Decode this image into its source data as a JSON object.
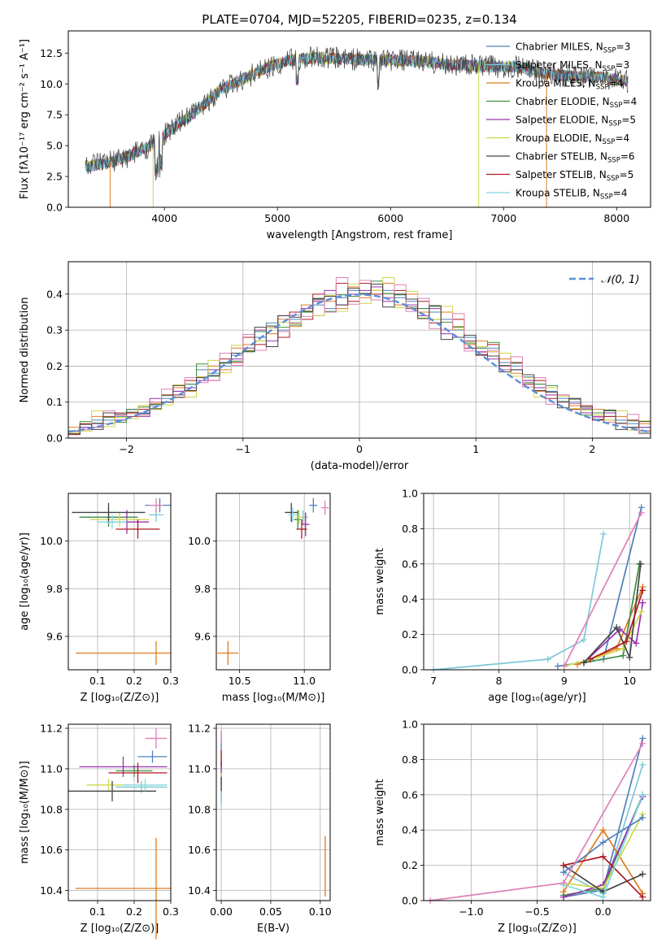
{
  "title": "PLATE=0704, MJD=52205, FIBERID=0235, z=0.134",
  "models": [
    {
      "name": "Chabrier MILES",
      "nssp": "3",
      "color": "#4f81bd"
    },
    {
      "name": "Salpeter MILES",
      "nssp": "3",
      "color": "#7ec8d8"
    },
    {
      "name": "Kroupa MILES",
      "nssp": "4",
      "color": "#e07b20"
    },
    {
      "name": "Chabrier ELODIE",
      "nssp": "4",
      "color": "#3e8e41"
    },
    {
      "name": "Salpeter ELODIE",
      "nssp": "5",
      "color": "#9b30b0"
    },
    {
      "name": "Kroupa ELODIE",
      "nssp": "4",
      "color": "#cfd84a"
    },
    {
      "name": "Chabrier STELIB",
      "nssp": "6",
      "color": "#444444"
    },
    {
      "name": "Salpeter STELIB",
      "nssp": "5",
      "color": "#b01820"
    },
    {
      "name": "Kroupa STELIB",
      "nssp": "4",
      "color": "#80d8e0"
    }
  ],
  "extra_colors": {
    "dash": "#5b8fd8",
    "pink": "#e080b8",
    "teal": "#30c0c0"
  },
  "chart_data": [
    {
      "id": "spectrum",
      "type": "line",
      "xlabel": "wavelength [Angstrom, rest frame]",
      "ylabel": "Flux [fλ10⁻¹⁷ erg cm⁻² s⁻¹ A⁻¹]",
      "xlim": [
        3150,
        8300
      ],
      "ylim": [
        0,
        14.3
      ],
      "xticks": [
        "4000",
        "5000",
        "6000",
        "7000",
        "8000"
      ],
      "yticks": [
        "0.0",
        "2.5",
        "5.0",
        "7.5",
        "10.0",
        "12.5"
      ],
      "grid": false,
      "legend": "top-right",
      "x": [
        3300,
        3500,
        3700,
        3900,
        4100,
        4300,
        4500,
        4700,
        4900,
        5100,
        5300,
        5500,
        5700,
        5900,
        6100,
        6300,
        6500,
        6700,
        6900,
        7100,
        7300,
        7500,
        7700,
        7900,
        8100
      ],
      "y": [
        3.3,
        3.6,
        4.2,
        5.1,
        6.6,
        7.9,
        9.6,
        10.4,
        11.3,
        11.9,
        12.1,
        12.1,
        12.0,
        11.9,
        11.9,
        11.8,
        11.6,
        11.5,
        11.4,
        11.4,
        11.0,
        10.7,
        10.6,
        10.5,
        10.2
      ]
    },
    {
      "id": "residuals",
      "type": "bar",
      "xlabel": "(data-model)/error",
      "ylabel": "Normed distribution",
      "xlim": [
        -2.5,
        2.5
      ],
      "ylim": [
        0,
        0.49
      ],
      "xticks": [
        "−2",
        "−1",
        "0",
        "1",
        "2"
      ],
      "yticks": [
        "0.0",
        "0.1",
        "0.2",
        "0.3",
        "0.4"
      ],
      "grid": true,
      "legend": "top-right",
      "legend_label": "𝒩(0, 1)",
      "bin_width": 0.1,
      "bins_start": -2.5,
      "series": [
        {
          "values": [
            0.02,
            0.03,
            0.05,
            0.05,
            0.06,
            0.08,
            0.07,
            0.09,
            0.11,
            0.13,
            0.15,
            0.19,
            0.18,
            0.2,
            0.23,
            0.24,
            0.28,
            0.32,
            0.3,
            0.33,
            0.35,
            0.37,
            0.36,
            0.39,
            0.41,
            0.4,
            0.42,
            0.41,
            0.39,
            0.38,
            0.36,
            0.35,
            0.33,
            0.3,
            0.28,
            0.25,
            0.25,
            0.21,
            0.2,
            0.17,
            0.15,
            0.13,
            0.11,
            0.1,
            0.08,
            0.07,
            0.06,
            0.05,
            0.04,
            0.03
          ]
        },
        {
          "values": [
            0.03,
            0.02,
            0.06,
            0.04,
            0.05,
            0.07,
            0.09,
            0.08,
            0.1,
            0.14,
            0.13,
            0.17,
            0.2,
            0.19,
            0.25,
            0.26,
            0.27,
            0.29,
            0.33,
            0.31,
            0.37,
            0.34,
            0.38,
            0.36,
            0.42,
            0.39,
            0.41,
            0.43,
            0.37,
            0.4,
            0.35,
            0.33,
            0.35,
            0.31,
            0.26,
            0.27,
            0.24,
            0.22,
            0.18,
            0.16,
            0.13,
            0.14,
            0.1,
            0.09,
            0.07,
            0.08,
            0.05,
            0.06,
            0.03,
            0.04
          ]
        },
        {
          "values": [
            0.01,
            0.04,
            0.03,
            0.06,
            0.07,
            0.06,
            0.08,
            0.1,
            0.12,
            0.12,
            0.16,
            0.17,
            0.16,
            0.22,
            0.21,
            0.28,
            0.26,
            0.31,
            0.28,
            0.35,
            0.33,
            0.4,
            0.35,
            0.43,
            0.38,
            0.43,
            0.4,
            0.39,
            0.41,
            0.36,
            0.38,
            0.32,
            0.3,
            0.33,
            0.25,
            0.23,
            0.26,
            0.19,
            0.21,
            0.15,
            0.16,
            0.11,
            0.12,
            0.08,
            0.09,
            0.05,
            0.06,
            0.04,
            0.05,
            0.02
          ]
        },
        {
          "values": [
            0.02,
            0.03,
            0.04,
            0.07,
            0.05,
            0.08,
            0.06,
            0.11,
            0.1,
            0.13,
            0.14,
            0.16,
            0.19,
            0.21,
            0.22,
            0.25,
            0.3,
            0.27,
            0.34,
            0.32,
            0.36,
            0.38,
            0.41,
            0.37,
            0.4,
            0.41,
            0.42,
            0.38,
            0.4,
            0.37,
            0.34,
            0.36,
            0.29,
            0.28,
            0.27,
            0.24,
            0.22,
            0.2,
            0.19,
            0.16,
            0.14,
            0.12,
            0.1,
            0.11,
            0.07,
            0.06,
            0.07,
            0.04,
            0.03,
            0.03
          ]
        }
      ]
    },
    {
      "id": "age-vs-metallicity",
      "type": "scatter",
      "xlabel": "Z [log₁₀(Z/Z⊙)]",
      "ylabel": "age  [log₁₀(age/yr)]",
      "xlim": [
        0.02,
        0.3
      ],
      "ylim": [
        9.46,
        10.2
      ],
      "xticks": [
        "0.1",
        "0.2",
        "0.3"
      ],
      "yticks": [
        "9.6",
        "9.8",
        "10.0"
      ],
      "grid": true,
      "points": [
        {
          "x": 0.27,
          "y": 10.15,
          "xerr": 0.04,
          "yerr": 0.03
        },
        {
          "x": 0.26,
          "y": 10.11,
          "xerr": 0.02,
          "yerr": 0.03
        },
        {
          "x": 0.26,
          "y": 9.53,
          "xerr": 0.22,
          "yerr": 0.05
        },
        {
          "x": 0.13,
          "y": 10.1,
          "xerr": 0.08,
          "yerr": 0.04
        },
        {
          "x": 0.18,
          "y": 10.08,
          "xerr": 0.06,
          "yerr": 0.05
        },
        {
          "x": 0.16,
          "y": 10.09,
          "xerr": 0.08,
          "yerr": 0.03
        },
        {
          "x": 0.13,
          "y": 10.12,
          "xerr": 0.1,
          "yerr": 0.04
        },
        {
          "x": 0.21,
          "y": 10.05,
          "xerr": 0.06,
          "yerr": 0.04
        },
        {
          "x": 0.14,
          "y": 10.08,
          "xerr": 0.04,
          "yerr": 0.03
        },
        {
          "x": 0.26,
          "y": 10.15,
          "xerr": 0.02,
          "yerr": 0.03
        }
      ]
    },
    {
      "id": "age-vs-mass",
      "type": "scatter",
      "xlabel": "mass [log₁₀(M/M⊙)]",
      "ylabel": "",
      "xlim": [
        10.32,
        11.2
      ],
      "ylim": [
        9.46,
        10.2
      ],
      "xticks": [
        "10.5",
        "11.0"
      ],
      "yticks": [
        "9.6",
        "9.8",
        "10.0"
      ],
      "grid": true,
      "points": [
        {
          "x": 11.07,
          "y": 10.15,
          "xerr": 0.03,
          "yerr": 0.03
        },
        {
          "x": 10.99,
          "y": 10.1,
          "xerr": 0.04,
          "yerr": 0.03
        },
        {
          "x": 10.41,
          "y": 9.53,
          "xerr": 0.08,
          "yerr": 0.05
        },
        {
          "x": 10.95,
          "y": 10.09,
          "xerr": 0.03,
          "yerr": 0.04
        },
        {
          "x": 11.01,
          "y": 10.07,
          "xerr": 0.03,
          "yerr": 0.05
        },
        {
          "x": 10.96,
          "y": 10.1,
          "xerr": 0.03,
          "yerr": 0.03
        },
        {
          "x": 10.9,
          "y": 10.12,
          "xerr": 0.05,
          "yerr": 0.04
        },
        {
          "x": 10.98,
          "y": 10.05,
          "xerr": 0.04,
          "yerr": 0.04
        },
        {
          "x": 10.91,
          "y": 10.11,
          "xerr": 0.03,
          "yerr": 0.03
        },
        {
          "x": 11.16,
          "y": 10.14,
          "xerr": 0.03,
          "yerr": 0.03
        }
      ]
    },
    {
      "id": "massweight-vs-age",
      "type": "line",
      "xlabel": "age  [log₁₀(age/yr)]",
      "ylabel": "mass weight",
      "xlim": [
        6.85,
        10.32
      ],
      "ylim": [
        0,
        1.0
      ],
      "xticks": [
        "7",
        "8",
        "9",
        "10"
      ],
      "yticks": [
        "0.0",
        "0.2",
        "0.4",
        "0.6",
        "0.8",
        "1.0"
      ],
      "grid": true,
      "series": [
        {
          "x": [
            8.9,
            9.6,
            10.18
          ],
          "y": [
            0.02,
            0.06,
            0.92
          ]
        },
        {
          "x": [
            7.0,
            8.75,
            9.3,
            9.6
          ],
          "y": [
            0.0,
            0.06,
            0.17,
            0.77
          ]
        },
        {
          "x": [
            9.2,
            9.8,
            10.2
          ],
          "y": [
            0.03,
            0.12,
            0.47
          ]
        },
        {
          "x": [
            9.3,
            9.9,
            10.15
          ],
          "y": [
            0.04,
            0.08,
            0.6
          ]
        },
        {
          "x": [
            9.3,
            9.85,
            10.1,
            10.2
          ],
          "y": [
            0.04,
            0.23,
            0.15,
            0.38
          ]
        },
        {
          "x": [
            9.0,
            9.5,
            9.9,
            10.18
          ],
          "y": [
            0.02,
            0.07,
            0.12,
            0.33
          ]
        },
        {
          "x": [
            9.3,
            9.8,
            10.0,
            10.17
          ],
          "y": [
            0.04,
            0.24,
            0.07,
            0.6
          ]
        },
        {
          "x": [
            9.4,
            9.95,
            10.2
          ],
          "y": [
            0.06,
            0.16,
            0.45
          ]
        },
        {
          "x": [
            9.0,
            10.18
          ],
          "y": [
            0.02,
            0.89
          ]
        }
      ]
    },
    {
      "id": "mass-vs-metallicity",
      "type": "scatter",
      "xlabel": "Z [log₁₀(Z/Z⊙)]",
      "ylabel": "mass [log₁₀(M/M⊙)]",
      "xlim": [
        0.02,
        0.3
      ],
      "ylim": [
        10.35,
        11.22
      ],
      "xticks": [
        "0.1",
        "0.2",
        "0.3"
      ],
      "yticks": [
        "10.4",
        "10.6",
        "10.8",
        "11.0",
        "11.2"
      ],
      "grid": true,
      "points": [
        {
          "x": 0.25,
          "y": 11.06,
          "xerr": 0.04,
          "yerr": 0.03
        },
        {
          "x": 0.22,
          "y": 10.91,
          "xerr": 0.07,
          "yerr": 0.03
        },
        {
          "x": 0.26,
          "y": 10.41,
          "xerr": 0.22,
          "yerr": 0.25
        },
        {
          "x": 0.2,
          "y": 10.99,
          "xerr": 0.05,
          "yerr": 0.03
        },
        {
          "x": 0.17,
          "y": 11.01,
          "xerr": 0.12,
          "yerr": 0.05
        },
        {
          "x": 0.13,
          "y": 10.92,
          "xerr": 0.06,
          "yerr": 0.03
        },
        {
          "x": 0.14,
          "y": 10.89,
          "xerr": 0.12,
          "yerr": 0.05
        },
        {
          "x": 0.21,
          "y": 10.98,
          "xerr": 0.08,
          "yerr": 0.05
        },
        {
          "x": 0.23,
          "y": 10.92,
          "xerr": 0.06,
          "yerr": 0.03
        },
        {
          "x": 0.26,
          "y": 11.15,
          "xerr": 0.03,
          "yerr": 0.05
        }
      ]
    },
    {
      "id": "mass-vs-extinction",
      "type": "scatter",
      "xlabel": "E(B-V)",
      "ylabel": "",
      "xlim": [
        -0.005,
        0.11
      ],
      "ylim": [
        10.35,
        11.22
      ],
      "xticks": [
        "0.00",
        "0.05",
        "0.10"
      ],
      "yticks": [
        "10.4",
        "10.6",
        "10.8",
        "11.0",
        "11.2"
      ],
      "grid": true,
      "points": [
        {
          "x": 0.0,
          "y": 11.12,
          "xerr": 0.0,
          "yerr": 0.06
        },
        {
          "x": 0.0,
          "y": 10.88,
          "xerr": 0.0,
          "yerr": 0.06
        },
        {
          "x": 0.105,
          "y": 10.52,
          "xerr": 0.0,
          "yerr": 0.15
        },
        {
          "x": 0.0,
          "y": 11.0,
          "xerr": 0.0,
          "yerr": 0.05
        },
        {
          "x": 0.0,
          "y": 10.98,
          "xerr": 0.0,
          "yerr": 0.06
        },
        {
          "x": 0.0,
          "y": 10.94,
          "xerr": 0.0,
          "yerr": 0.04
        },
        {
          "x": 0.0,
          "y": 10.9,
          "xerr": 0.0,
          "yerr": 0.06
        },
        {
          "x": 0.0,
          "y": 11.05,
          "xerr": 0.0,
          "yerr": 0.04
        },
        {
          "x": 0.0,
          "y": 10.85,
          "xerr": 0.0,
          "yerr": 0.04
        },
        {
          "x": 0.0,
          "y": 11.16,
          "xerr": 0.0,
          "yerr": 0.03
        }
      ]
    },
    {
      "id": "massweight-vs-metallicity",
      "type": "line",
      "xlabel": "Z [log₁₀(Z/Z⊙)]",
      "ylabel": "mass weight",
      "xlim": [
        -1.36,
        0.36
      ],
      "ylim": [
        0,
        1.0
      ],
      "xticks": [
        "−1.0",
        "−0.5",
        "0.0"
      ],
      "yticks": [
        "0.0",
        "0.2",
        "0.4",
        "0.6",
        "0.8",
        "1.0"
      ],
      "grid": true,
      "series": [
        {
          "x": [
            -0.3,
            0.0,
            0.3
          ],
          "y": [
            0.02,
            0.06,
            0.92
          ]
        },
        {
          "x": [
            -0.3,
            0.0,
            0.3
          ],
          "y": [
            0.16,
            0.04,
            0.77
          ]
        },
        {
          "x": [
            -0.3,
            0.0,
            0.3
          ],
          "y": [
            0.05,
            0.4,
            0.04
          ]
        },
        {
          "x": [
            -0.3,
            0.0,
            0.3
          ],
          "y": [
            0.03,
            0.07,
            0.6
          ]
        },
        {
          "x": [
            -0.3,
            0.0,
            0.3
          ],
          "y": [
            0.02,
            0.09,
            0.59
          ]
        },
        {
          "x": [
            -0.3,
            0.0,
            0.3
          ],
          "y": [
            0.1,
            0.07,
            0.49
          ]
        },
        {
          "x": [
            -0.3,
            0.0,
            0.3
          ],
          "y": [
            0.2,
            0.05,
            0.15
          ]
        },
        {
          "x": [
            -0.3,
            0.0,
            0.3
          ],
          "y": [
            0.2,
            0.25,
            0.02
          ]
        },
        {
          "x": [
            -0.3,
            0.0,
            0.3
          ],
          "y": [
            0.09,
            0.02,
            0.6
          ]
        },
        {
          "x": [
            -0.3,
            0.0,
            0.3
          ],
          "y": [
            0.16,
            0.33,
            0.47
          ]
        },
        {
          "x": [
            -1.31,
            -0.3,
            0.3
          ],
          "y": [
            0.0,
            0.1,
            0.89
          ]
        }
      ]
    }
  ]
}
